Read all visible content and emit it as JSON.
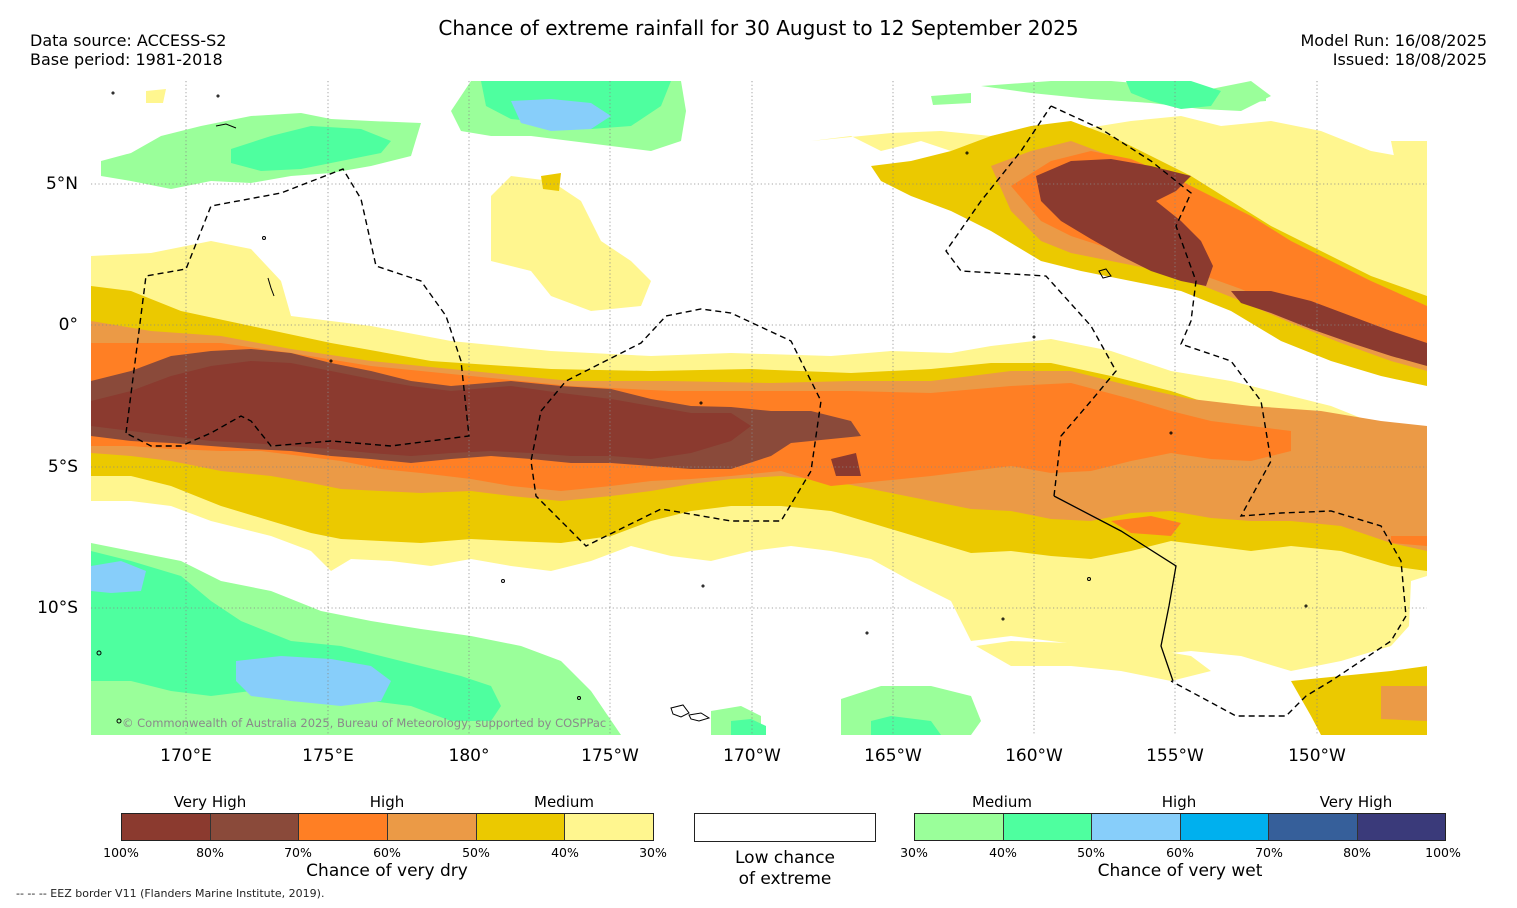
{
  "header": {
    "title": "Chance of extreme rainfall for 30 August to 12 September 2025",
    "data_source": "Data source: ACCESS-S2",
    "base_period": "Base period: 1981-2018",
    "model_run": "Model Run: 16/08/2025",
    "issued": "Issued: 18/08/2025"
  },
  "map": {
    "lat_labels": [
      "5°N",
      "0°",
      "5°S",
      "10°S"
    ],
    "lon_labels": [
      "170°E",
      "175°E",
      "180°",
      "175°W",
      "170°W",
      "165°W",
      "160°W",
      "155°W",
      "150°W"
    ],
    "copyright": "© Commonwealth of Australia 2025, Bureau of Meteorology, supported by COSPPac"
  },
  "legend": {
    "dry": {
      "labels": [
        "Very High",
        "High",
        "Medium"
      ],
      "colors": [
        "#8b3a2f",
        "#8a4a3a",
        "#ff7f24",
        "#eb9a46",
        "#ebc900",
        "#fff68f"
      ],
      "ticks": [
        "100%",
        "80%",
        "70%",
        "60%",
        "50%",
        "40%",
        "30%"
      ],
      "caption": "Chance of very dry"
    },
    "low": {
      "caption_line1": "Low chance",
      "caption_line2": "of extreme"
    },
    "wet": {
      "labels": [
        "Medium",
        "High",
        "Very High"
      ],
      "colors": [
        "#9aff9a",
        "#4eff9f",
        "#87cefa",
        "#00b0ee",
        "#365f9a",
        "#3a3a7a"
      ],
      "ticks": [
        "30%",
        "40%",
        "50%",
        "60%",
        "70%",
        "80%",
        "100%"
      ],
      "caption": "Chance of very wet"
    }
  },
  "footnote": "-- -- -- EEZ border V11 (Flanders Marine Institute, 2019)."
}
